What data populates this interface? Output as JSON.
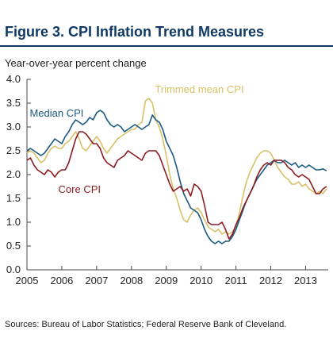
{
  "figure": {
    "title": "Figure 3. CPI Inflation Trend Measures",
    "source": "Sources: Bureau of Labor Statistics; Federal Reserve Bank of Cleveland."
  },
  "chart_data": {
    "type": "line",
    "title": "Figure 3. CPI Inflation Trend Measures",
    "ylabel": "Year-over-year percent change",
    "xlabel": "",
    "xlim": [
      2005.0,
      2013.65
    ],
    "ylim": [
      0.0,
      4.0
    ],
    "yticks": [
      "0.0",
      "0.5",
      "1.0",
      "1.5",
      "2.0",
      "2.5",
      "3.0",
      "3.5",
      "4.0"
    ],
    "xticks": [
      "2005",
      "2006",
      "2007",
      "2008",
      "2009",
      "2010",
      "2011",
      "2012",
      "2013"
    ],
    "grid": false,
    "legend": "inline labels",
    "series": [
      {
        "name": "Median CPI",
        "color": "#1b5a80",
        "x": [
          2005.0,
          2005.1,
          2005.2,
          2005.3,
          2005.4,
          2005.5,
          2005.6,
          2005.7,
          2005.8,
          2005.9,
          2006.0,
          2006.1,
          2006.2,
          2006.3,
          2006.4,
          2006.5,
          2006.6,
          2006.7,
          2006.8,
          2006.9,
          2007.0,
          2007.1,
          2007.2,
          2007.3,
          2007.4,
          2007.5,
          2007.6,
          2007.7,
          2007.8,
          2007.9,
          2008.0,
          2008.1,
          2008.2,
          2008.3,
          2008.4,
          2008.5,
          2008.6,
          2008.7,
          2008.8,
          2008.9,
          2009.0,
          2009.1,
          2009.2,
          2009.3,
          2009.4,
          2009.5,
          2009.6,
          2009.7,
          2009.8,
          2009.9,
          2010.0,
          2010.1,
          2010.2,
          2010.3,
          2010.4,
          2010.5,
          2010.6,
          2010.7,
          2010.8,
          2010.9,
          2011.0,
          2011.1,
          2011.2,
          2011.3,
          2011.4,
          2011.5,
          2011.6,
          2011.7,
          2011.8,
          2011.9,
          2012.0,
          2012.1,
          2012.2,
          2012.3,
          2012.4,
          2012.5,
          2012.6,
          2012.7,
          2012.8,
          2012.9,
          2013.0,
          2013.1,
          2013.2,
          2013.3,
          2013.4,
          2013.5,
          2013.6
        ],
        "values": [
          2.5,
          2.55,
          2.5,
          2.45,
          2.4,
          2.45,
          2.55,
          2.65,
          2.75,
          2.7,
          2.65,
          2.8,
          2.9,
          3.05,
          3.15,
          3.1,
          3.05,
          3.1,
          3.2,
          3.15,
          3.3,
          3.35,
          3.3,
          3.15,
          3.05,
          3.0,
          3.05,
          3.0,
          2.9,
          2.95,
          3.0,
          3.05,
          3.0,
          2.95,
          3.0,
          3.05,
          3.25,
          3.15,
          3.1,
          2.95,
          2.7,
          2.55,
          2.4,
          2.15,
          1.85,
          1.6,
          1.45,
          1.3,
          1.25,
          1.2,
          1.05,
          0.85,
          0.7,
          0.6,
          0.55,
          0.6,
          0.55,
          0.6,
          0.6,
          0.7,
          0.85,
          1.05,
          1.25,
          1.45,
          1.6,
          1.75,
          1.9,
          2.0,
          2.1,
          2.2,
          2.25,
          2.3,
          2.25,
          2.25,
          2.3,
          2.25,
          2.2,
          2.25,
          2.15,
          2.2,
          2.15,
          2.2,
          2.15,
          2.1,
          2.1,
          2.12,
          2.08
        ]
      },
      {
        "name": "Trimmed mean CPI",
        "color": "#d8c168",
        "x": [
          2005.0,
          2005.1,
          2005.2,
          2005.3,
          2005.4,
          2005.5,
          2005.6,
          2005.7,
          2005.8,
          2005.9,
          2006.0,
          2006.1,
          2006.2,
          2006.3,
          2006.4,
          2006.5,
          2006.6,
          2006.7,
          2006.8,
          2006.9,
          2007.0,
          2007.1,
          2007.2,
          2007.3,
          2007.4,
          2007.5,
          2007.6,
          2007.7,
          2007.8,
          2007.9,
          2008.0,
          2008.1,
          2008.2,
          2008.3,
          2008.4,
          2008.5,
          2008.6,
          2008.7,
          2008.8,
          2008.9,
          2009.0,
          2009.1,
          2009.2,
          2009.3,
          2009.4,
          2009.5,
          2009.6,
          2009.7,
          2009.8,
          2009.9,
          2010.0,
          2010.1,
          2010.2,
          2010.3,
          2010.4,
          2010.5,
          2010.6,
          2010.7,
          2010.8,
          2010.9,
          2011.0,
          2011.1,
          2011.2,
          2011.3,
          2011.4,
          2011.5,
          2011.6,
          2011.7,
          2011.8,
          2011.9,
          2012.0,
          2012.1,
          2012.2,
          2012.3,
          2012.4,
          2012.5,
          2012.6,
          2012.7,
          2012.8,
          2012.9,
          2013.0,
          2013.1,
          2013.2,
          2013.3,
          2013.4,
          2013.5,
          2013.6
        ],
        "values": [
          2.45,
          2.5,
          2.45,
          2.35,
          2.25,
          2.3,
          2.45,
          2.55,
          2.6,
          2.55,
          2.55,
          2.65,
          2.7,
          2.8,
          2.9,
          2.75,
          2.55,
          2.5,
          2.6,
          2.7,
          2.8,
          2.7,
          2.55,
          2.45,
          2.55,
          2.65,
          2.75,
          2.8,
          2.85,
          2.9,
          2.95,
          2.95,
          3.05,
          3.1,
          3.55,
          3.6,
          3.5,
          3.15,
          3.0,
          2.75,
          2.4,
          2.0,
          1.7,
          1.5,
          1.25,
          1.05,
          1.0,
          1.15,
          1.25,
          1.3,
          1.2,
          1.05,
          0.9,
          0.85,
          0.8,
          0.85,
          0.75,
          0.8,
          0.75,
          0.8,
          0.9,
          1.2,
          1.55,
          1.85,
          2.05,
          2.2,
          2.35,
          2.45,
          2.5,
          2.5,
          2.45,
          2.3,
          2.15,
          2.05,
          1.95,
          1.9,
          1.8,
          1.8,
          1.85,
          1.75,
          1.8,
          1.7,
          1.65,
          1.6,
          1.65,
          1.6,
          1.7
        ]
      },
      {
        "name": "Core CPI",
        "color": "#8c1c22",
        "x": [
          2005.0,
          2005.1,
          2005.2,
          2005.3,
          2005.4,
          2005.5,
          2005.6,
          2005.7,
          2005.8,
          2005.9,
          2006.0,
          2006.1,
          2006.2,
          2006.3,
          2006.4,
          2006.5,
          2006.6,
          2006.7,
          2006.8,
          2006.9,
          2007.0,
          2007.1,
          2007.2,
          2007.3,
          2007.4,
          2007.5,
          2007.6,
          2007.7,
          2007.8,
          2007.9,
          2008.0,
          2008.1,
          2008.2,
          2008.3,
          2008.4,
          2008.5,
          2008.6,
          2008.7,
          2008.8,
          2008.9,
          2009.0,
          2009.1,
          2009.2,
          2009.3,
          2009.4,
          2009.5,
          2009.6,
          2009.7,
          2009.8,
          2009.9,
          2010.0,
          2010.1,
          2010.2,
          2010.3,
          2010.4,
          2010.5,
          2010.6,
          2010.7,
          2010.8,
          2010.9,
          2011.0,
          2011.1,
          2011.2,
          2011.3,
          2011.4,
          2011.5,
          2011.6,
          2011.7,
          2011.8,
          2011.9,
          2012.0,
          2012.1,
          2012.2,
          2012.3,
          2012.4,
          2012.5,
          2012.6,
          2012.7,
          2012.8,
          2012.9,
          2013.0,
          2013.1,
          2013.2,
          2013.3,
          2013.4,
          2013.5,
          2013.6
        ],
        "values": [
          2.3,
          2.35,
          2.2,
          2.1,
          2.05,
          2.0,
          2.1,
          2.05,
          1.95,
          2.05,
          2.1,
          2.1,
          2.25,
          2.5,
          2.75,
          2.9,
          2.9,
          2.85,
          2.75,
          2.65,
          2.65,
          2.55,
          2.35,
          2.25,
          2.2,
          2.15,
          2.3,
          2.35,
          2.4,
          2.5,
          2.45,
          2.4,
          2.35,
          2.3,
          2.45,
          2.5,
          2.5,
          2.5,
          2.4,
          2.2,
          2.0,
          1.8,
          1.65,
          1.7,
          1.75,
          1.65,
          1.7,
          1.55,
          1.8,
          1.75,
          1.65,
          1.35,
          1.0,
          0.95,
          0.95,
          0.95,
          1.0,
          0.85,
          0.65,
          0.75,
          0.95,
          1.1,
          1.3,
          1.45,
          1.6,
          1.75,
          1.95,
          2.1,
          2.2,
          2.25,
          2.2,
          2.3,
          2.3,
          2.3,
          2.25,
          2.15,
          2.1,
          2.0,
          1.95,
          2.0,
          1.95,
          1.9,
          1.75,
          1.6,
          1.6,
          1.7,
          1.75
        ]
      }
    ]
  }
}
